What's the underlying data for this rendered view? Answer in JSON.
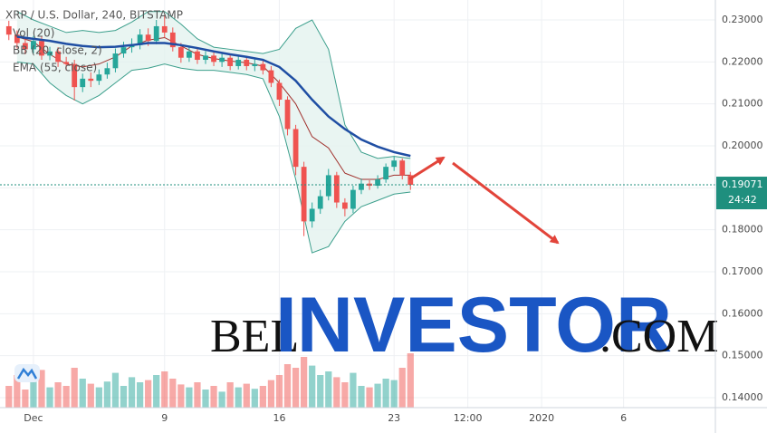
{
  "chart_data": {
    "type": "candlestick",
    "title": "XRP / U.S. Dollar, 240, BITSTAMP",
    "x": [
      -0.5,
      0,
      0.5,
      1,
      1.5,
      2,
      2.5,
      3,
      3.5,
      4,
      4.5,
      5,
      5.5,
      6,
      6.5,
      7,
      7.5,
      8,
      8.5,
      9,
      9.5,
      10,
      10.5,
      11,
      11.5,
      12,
      12.5,
      13,
      13.5,
      14,
      14.5,
      15,
      15.5,
      16,
      16.5,
      17,
      17.5,
      18,
      18.5,
      19,
      19.5,
      20,
      20.5,
      21,
      21.5,
      22,
      22.5,
      23,
      23.5,
      24
    ],
    "open": [
      0.2285,
      0.2265,
      0.2245,
      0.223,
      0.225,
      0.2215,
      0.2225,
      0.22,
      0.2195,
      0.214,
      0.216,
      0.2155,
      0.217,
      0.2185,
      0.222,
      0.2235,
      0.224,
      0.2265,
      0.225,
      0.2285,
      0.227,
      0.2235,
      0.221,
      0.2225,
      0.2205,
      0.2215,
      0.22,
      0.221,
      0.219,
      0.2205,
      0.219,
      0.2195,
      0.218,
      0.215,
      0.211,
      0.204,
      0.195,
      0.182,
      0.185,
      0.188,
      0.193,
      0.1865,
      0.185,
      0.1895,
      0.191,
      0.1905,
      0.192,
      0.195,
      0.1965,
      0.193
    ],
    "high": [
      0.2298,
      0.2275,
      0.2258,
      0.2262,
      0.226,
      0.2236,
      0.2235,
      0.2212,
      0.2205,
      0.2172,
      0.2175,
      0.2182,
      0.2198,
      0.2232,
      0.2248,
      0.2256,
      0.2278,
      0.228,
      0.23,
      0.2312,
      0.2282,
      0.2245,
      0.2236,
      0.2235,
      0.2226,
      0.2224,
      0.222,
      0.2218,
      0.2214,
      0.2212,
      0.2206,
      0.2204,
      0.219,
      0.2158,
      0.2118,
      0.205,
      0.1962,
      0.1865,
      0.1895,
      0.1945,
      0.1938,
      0.1875,
      0.1905,
      0.1922,
      0.1918,
      0.193,
      0.1958,
      0.1975,
      0.197,
      0.1938
    ],
    "low": [
      0.2252,
      0.2232,
      0.2218,
      0.222,
      0.2205,
      0.2204,
      0.2188,
      0.218,
      0.2108,
      0.2128,
      0.214,
      0.2145,
      0.216,
      0.2175,
      0.221,
      0.2222,
      0.223,
      0.2238,
      0.2242,
      0.2258,
      0.2225,
      0.2198,
      0.22,
      0.2195,
      0.2195,
      0.219,
      0.2188,
      0.218,
      0.2182,
      0.218,
      0.2178,
      0.217,
      0.214,
      0.2095,
      0.2025,
      0.193,
      0.1785,
      0.1805,
      0.1838,
      0.187,
      0.1852,
      0.1832,
      0.184,
      0.1885,
      0.1895,
      0.1898,
      0.1912,
      0.194,
      0.192,
      0.1895
    ],
    "close": [
      0.2265,
      0.2245,
      0.223,
      0.225,
      0.2215,
      0.2225,
      0.22,
      0.2195,
      0.214,
      0.216,
      0.2155,
      0.217,
      0.2185,
      0.222,
      0.2235,
      0.224,
      0.2265,
      0.225,
      0.2285,
      0.227,
      0.2235,
      0.221,
      0.2225,
      0.2205,
      0.2215,
      0.22,
      0.221,
      0.219,
      0.2205,
      0.219,
      0.2195,
      0.218,
      0.215,
      0.211,
      0.204,
      0.195,
      0.182,
      0.185,
      0.188,
      0.193,
      0.1865,
      0.185,
      0.1895,
      0.191,
      0.1905,
      0.192,
      0.195,
      0.1965,
      0.193,
      0.1907
    ],
    "up_color": "#26a69a",
    "down_color": "#ef5350",
    "volume": {
      "name": "Vol (20)",
      "ylim": [
        0,
        100
      ],
      "values": [
        30,
        45,
        25,
        38,
        52,
        28,
        35,
        30,
        55,
        40,
        33,
        28,
        36,
        48,
        30,
        42,
        35,
        38,
        45,
        50,
        40,
        32,
        28,
        35,
        25,
        30,
        22,
        35,
        28,
        33,
        26,
        30,
        38,
        45,
        60,
        55,
        70,
        58,
        45,
        50,
        42,
        35,
        48,
        30,
        28,
        33,
        40,
        38,
        55,
        75
      ]
    },
    "line_x": [
      0,
      1,
      2,
      3,
      4,
      5,
      6,
      7,
      8,
      9,
      10,
      11,
      12,
      13,
      14,
      15,
      16,
      17,
      18,
      19,
      20,
      21,
      22,
      23,
      24
    ],
    "bollinger": {
      "name": "BB (20, close, 2)",
      "color": "#3c9f8c",
      "fill": "#e3f3ef",
      "middle_color": "#a0302c",
      "upper": [
        0.232,
        0.23,
        0.2285,
        0.227,
        0.2275,
        0.227,
        0.2275,
        0.2295,
        0.232,
        0.232,
        0.229,
        0.2255,
        0.2235,
        0.223,
        0.2225,
        0.222,
        0.223,
        0.228,
        0.23,
        0.223,
        0.205,
        0.1985,
        0.197,
        0.1975,
        0.197
      ],
      "middle": [
        0.226,
        0.2248,
        0.2218,
        0.2195,
        0.2188,
        0.2195,
        0.2212,
        0.2238,
        0.2252,
        0.2258,
        0.2238,
        0.2218,
        0.2208,
        0.2202,
        0.2198,
        0.219,
        0.215,
        0.21,
        0.2022,
        0.1995,
        0.1935,
        0.192,
        0.192,
        0.193,
        0.193
      ],
      "lower": [
        0.22,
        0.2195,
        0.215,
        0.212,
        0.21,
        0.212,
        0.215,
        0.218,
        0.2185,
        0.2195,
        0.2185,
        0.218,
        0.218,
        0.2175,
        0.217,
        0.216,
        0.207,
        0.192,
        0.1745,
        0.176,
        0.182,
        0.1855,
        0.187,
        0.1885,
        0.189
      ]
    },
    "ema": {
      "name": "EMA (55, close)",
      "color": "#1f4ea3",
      "values": [
        0.226,
        0.2255,
        0.225,
        0.2243,
        0.2238,
        0.2235,
        0.2236,
        0.224,
        0.2245,
        0.2245,
        0.224,
        0.2233,
        0.2225,
        0.2218,
        0.2212,
        0.2205,
        0.2188,
        0.2155,
        0.211,
        0.207,
        0.204,
        0.2015,
        0.1998,
        0.1985,
        0.1976
      ]
    },
    "last_price": 0.19071,
    "countdown": "24:42",
    "price_tag_color": "#1f8f7e",
    "ylim": [
      0.13762,
      0.23475
    ],
    "yticks": [
      {
        "value": 0.14,
        "label": "0.14000"
      },
      {
        "value": 0.15,
        "label": "0.15000"
      },
      {
        "value": 0.16,
        "label": "0.16000"
      },
      {
        "value": 0.17,
        "label": "0.17000"
      },
      {
        "value": 0.18,
        "label": "0.18000"
      },
      {
        "value": 0.19,
        "label": "0.19000"
      },
      {
        "value": 0.2,
        "label": "0.20000"
      },
      {
        "value": 0.21,
        "label": "0.21000"
      },
      {
        "value": 0.22,
        "label": "0.22000"
      },
      {
        "value": 0.23,
        "label": "0.23000"
      }
    ],
    "xlim": [
      -1.04,
      42.6
    ],
    "xticks": [
      {
        "value": 1,
        "label": "Dec"
      },
      9,
      16,
      23,
      {
        "value": 27.5,
        "label": "12:00"
      },
      {
        "value": 32,
        "label": "2020"
      },
      {
        "value": 37,
        "label": "6"
      }
    ],
    "grid": true,
    "watermark": {
      "prefix": "BEL",
      "main": "INVESTOR",
      "suffix": ".COM"
    }
  }
}
